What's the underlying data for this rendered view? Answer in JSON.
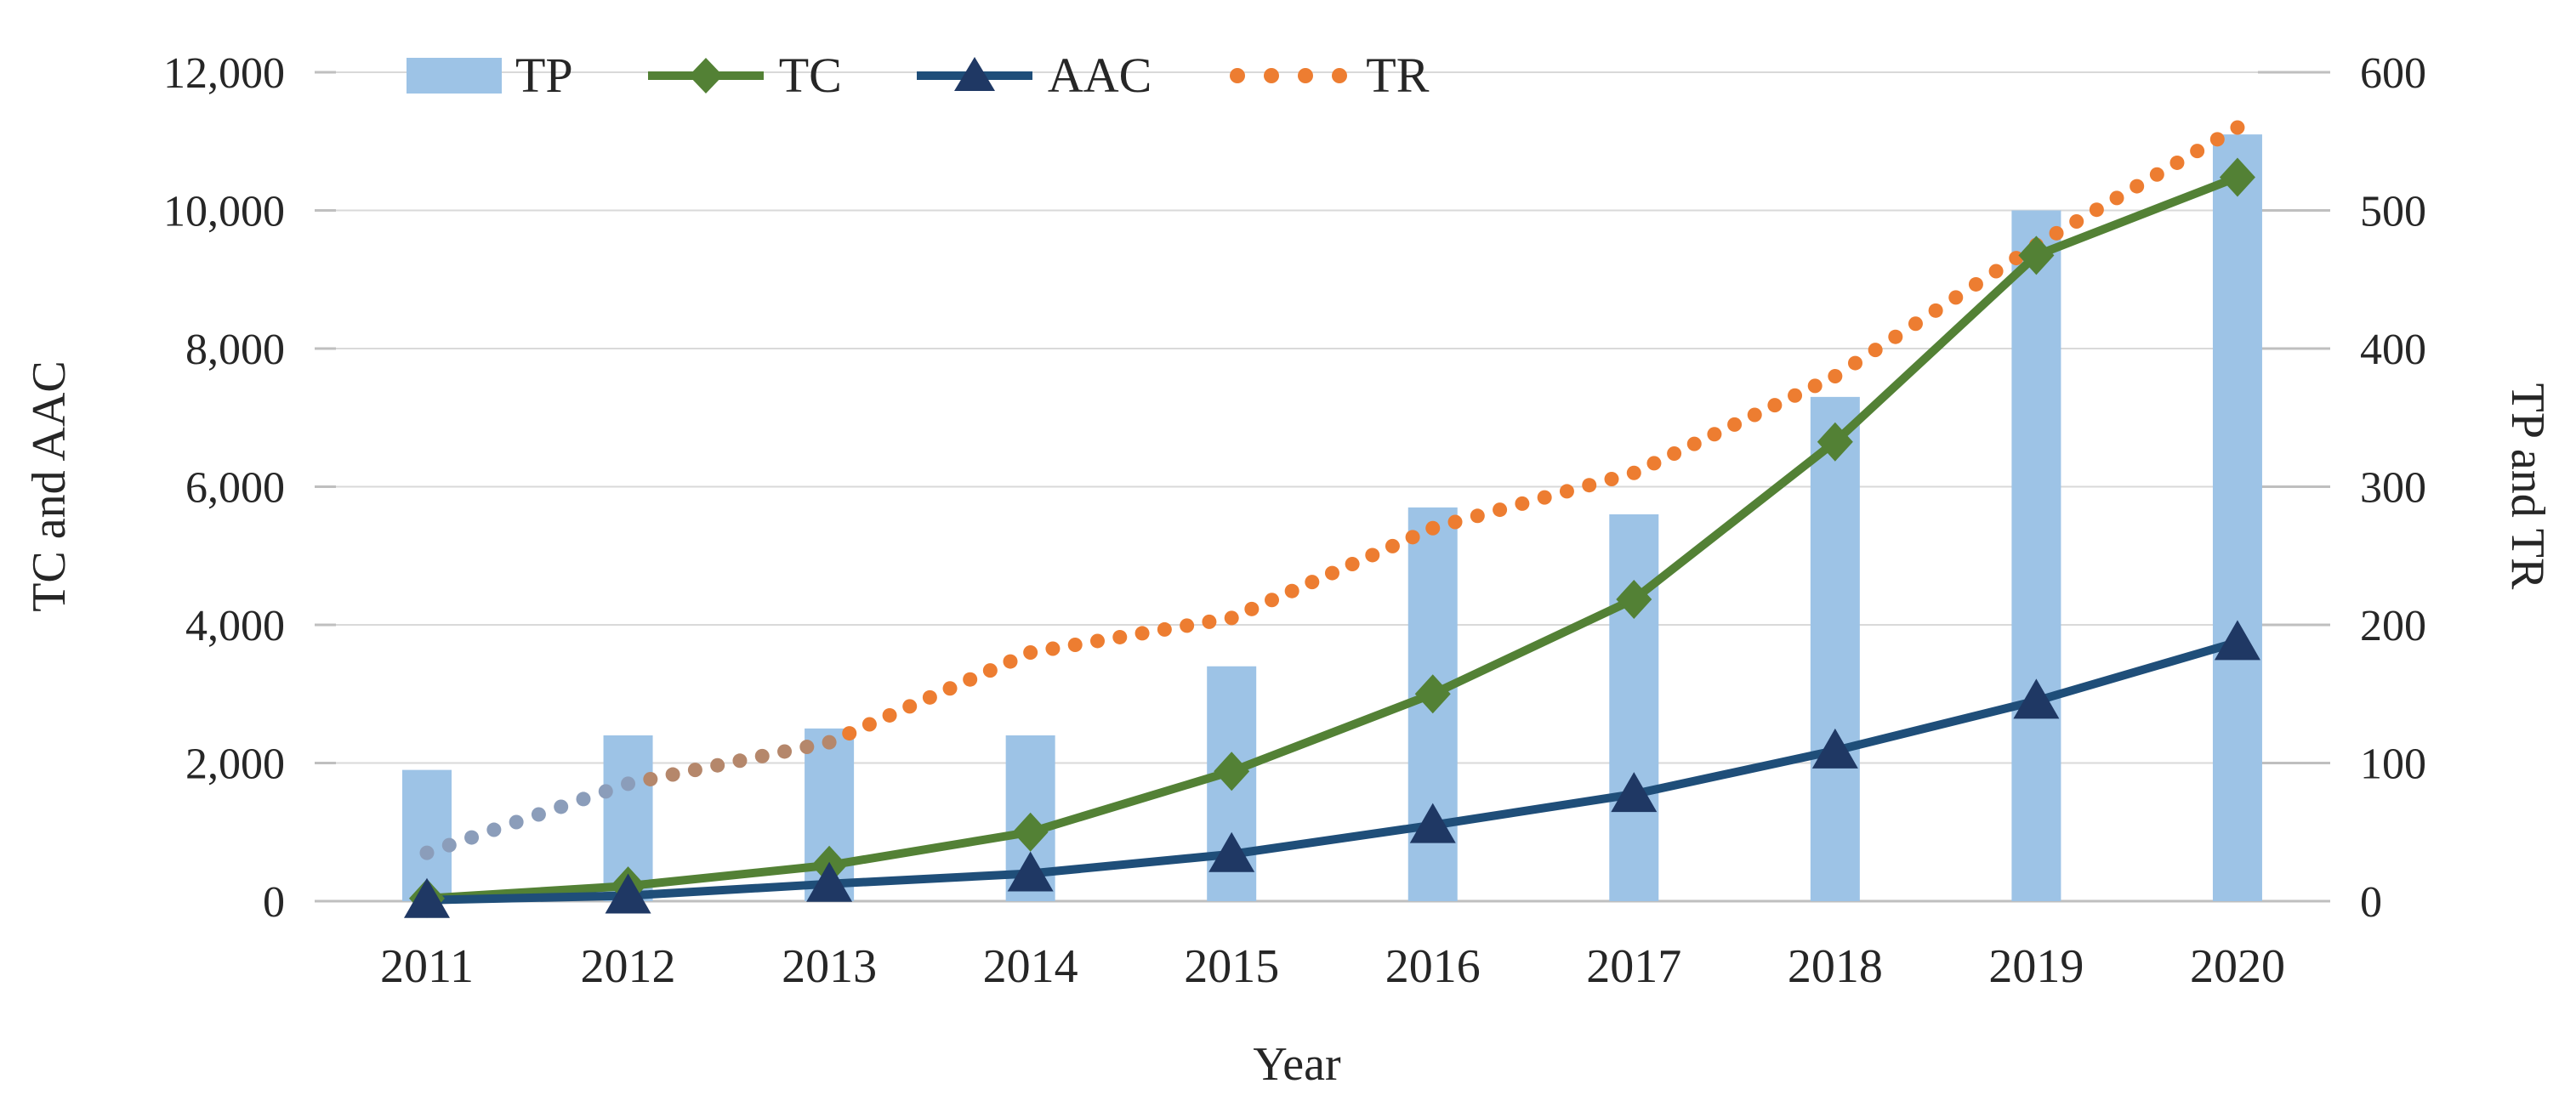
{
  "chart_data": {
    "type": "combo-bar-line",
    "title": "",
    "categories": [
      "2011",
      "2012",
      "2013",
      "2014",
      "2015",
      "2016",
      "2017",
      "2018",
      "2019",
      "2020"
    ],
    "series": [
      {
        "name": "TP",
        "type": "bar",
        "axis": "right",
        "color": "#9DC3E6",
        "values": [
          95,
          120,
          125,
          120,
          170,
          285,
          280,
          365,
          500,
          555
        ]
      },
      {
        "name": "TC",
        "type": "line",
        "marker": "diamond",
        "axis": "left",
        "color": "#538135",
        "values": [
          40,
          220,
          520,
          1000,
          1880,
          3000,
          4370,
          6650,
          9350,
          10480
        ]
      },
      {
        "name": "AAC",
        "type": "line",
        "marker": "triangle",
        "axis": "left",
        "color": "#1F4E79",
        "marker_color": "#1F3864",
        "values": [
          15,
          80,
          250,
          400,
          680,
          1100,
          1550,
          2180,
          2900,
          3750
        ]
      },
      {
        "name": "TR",
        "type": "dotted-line",
        "axis": "right",
        "color": "#ED7D31",
        "fade_colors": [
          "#8B9DBA",
          "#B5876B"
        ],
        "values": [
          35,
          85,
          115,
          180,
          205,
          270,
          310,
          380,
          475,
          560
        ]
      }
    ],
    "left_axis": {
      "title": "TC and AAC",
      "min": 0,
      "max": 12000,
      "step": 2000,
      "tick_labels": [
        "0",
        "2,000",
        "4,000",
        "6,000",
        "8,000",
        "10,000",
        "12,000"
      ]
    },
    "right_axis": {
      "title": "TP and TR",
      "min": 0,
      "max": 600,
      "step": 100,
      "tick_labels": [
        "0",
        "100",
        "200",
        "300",
        "400",
        "500",
        "600"
      ]
    },
    "x_axis": {
      "title": "Year"
    },
    "grid": true,
    "legend_position": "top-inside-left"
  },
  "colors": {
    "background": "#FFFFFF",
    "gridline": "#D9D9D9",
    "axis_line": "#BFBFBF",
    "text": "#262626"
  }
}
